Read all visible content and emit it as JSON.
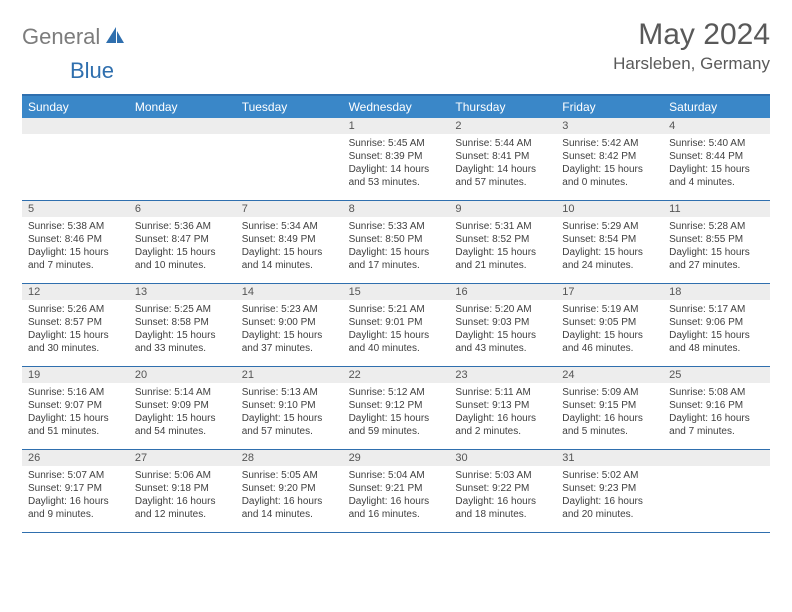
{
  "brand": {
    "part_a": "General",
    "part_b": "Blue"
  },
  "title": "May 2024",
  "location": "Harsleben, Germany",
  "colors": {
    "accent": "#2f6fae",
    "header_bg": "#3a87c8",
    "header_fg": "#ffffff",
    "daynum_bg": "#ededed",
    "text_muted": "#595959",
    "text_body": "#404040"
  },
  "layout": {
    "cols": 7,
    "rows": 5
  },
  "weekdays": [
    "Sunday",
    "Monday",
    "Tuesday",
    "Wednesday",
    "Thursday",
    "Friday",
    "Saturday"
  ],
  "weeks": [
    [
      {
        "n": "",
        "sr": "",
        "ss": "",
        "dl": ""
      },
      {
        "n": "",
        "sr": "",
        "ss": "",
        "dl": ""
      },
      {
        "n": "",
        "sr": "",
        "ss": "",
        "dl": ""
      },
      {
        "n": "1",
        "sr": "Sunrise: 5:45 AM",
        "ss": "Sunset: 8:39 PM",
        "dl": "Daylight: 14 hours and 53 minutes."
      },
      {
        "n": "2",
        "sr": "Sunrise: 5:44 AM",
        "ss": "Sunset: 8:41 PM",
        "dl": "Daylight: 14 hours and 57 minutes."
      },
      {
        "n": "3",
        "sr": "Sunrise: 5:42 AM",
        "ss": "Sunset: 8:42 PM",
        "dl": "Daylight: 15 hours and 0 minutes."
      },
      {
        "n": "4",
        "sr": "Sunrise: 5:40 AM",
        "ss": "Sunset: 8:44 PM",
        "dl": "Daylight: 15 hours and 4 minutes."
      }
    ],
    [
      {
        "n": "5",
        "sr": "Sunrise: 5:38 AM",
        "ss": "Sunset: 8:46 PM",
        "dl": "Daylight: 15 hours and 7 minutes."
      },
      {
        "n": "6",
        "sr": "Sunrise: 5:36 AM",
        "ss": "Sunset: 8:47 PM",
        "dl": "Daylight: 15 hours and 10 minutes."
      },
      {
        "n": "7",
        "sr": "Sunrise: 5:34 AM",
        "ss": "Sunset: 8:49 PM",
        "dl": "Daylight: 15 hours and 14 minutes."
      },
      {
        "n": "8",
        "sr": "Sunrise: 5:33 AM",
        "ss": "Sunset: 8:50 PM",
        "dl": "Daylight: 15 hours and 17 minutes."
      },
      {
        "n": "9",
        "sr": "Sunrise: 5:31 AM",
        "ss": "Sunset: 8:52 PM",
        "dl": "Daylight: 15 hours and 21 minutes."
      },
      {
        "n": "10",
        "sr": "Sunrise: 5:29 AM",
        "ss": "Sunset: 8:54 PM",
        "dl": "Daylight: 15 hours and 24 minutes."
      },
      {
        "n": "11",
        "sr": "Sunrise: 5:28 AM",
        "ss": "Sunset: 8:55 PM",
        "dl": "Daylight: 15 hours and 27 minutes."
      }
    ],
    [
      {
        "n": "12",
        "sr": "Sunrise: 5:26 AM",
        "ss": "Sunset: 8:57 PM",
        "dl": "Daylight: 15 hours and 30 minutes."
      },
      {
        "n": "13",
        "sr": "Sunrise: 5:25 AM",
        "ss": "Sunset: 8:58 PM",
        "dl": "Daylight: 15 hours and 33 minutes."
      },
      {
        "n": "14",
        "sr": "Sunrise: 5:23 AM",
        "ss": "Sunset: 9:00 PM",
        "dl": "Daylight: 15 hours and 37 minutes."
      },
      {
        "n": "15",
        "sr": "Sunrise: 5:21 AM",
        "ss": "Sunset: 9:01 PM",
        "dl": "Daylight: 15 hours and 40 minutes."
      },
      {
        "n": "16",
        "sr": "Sunrise: 5:20 AM",
        "ss": "Sunset: 9:03 PM",
        "dl": "Daylight: 15 hours and 43 minutes."
      },
      {
        "n": "17",
        "sr": "Sunrise: 5:19 AM",
        "ss": "Sunset: 9:05 PM",
        "dl": "Daylight: 15 hours and 46 minutes."
      },
      {
        "n": "18",
        "sr": "Sunrise: 5:17 AM",
        "ss": "Sunset: 9:06 PM",
        "dl": "Daylight: 15 hours and 48 minutes."
      }
    ],
    [
      {
        "n": "19",
        "sr": "Sunrise: 5:16 AM",
        "ss": "Sunset: 9:07 PM",
        "dl": "Daylight: 15 hours and 51 minutes."
      },
      {
        "n": "20",
        "sr": "Sunrise: 5:14 AM",
        "ss": "Sunset: 9:09 PM",
        "dl": "Daylight: 15 hours and 54 minutes."
      },
      {
        "n": "21",
        "sr": "Sunrise: 5:13 AM",
        "ss": "Sunset: 9:10 PM",
        "dl": "Daylight: 15 hours and 57 minutes."
      },
      {
        "n": "22",
        "sr": "Sunrise: 5:12 AM",
        "ss": "Sunset: 9:12 PM",
        "dl": "Daylight: 15 hours and 59 minutes."
      },
      {
        "n": "23",
        "sr": "Sunrise: 5:11 AM",
        "ss": "Sunset: 9:13 PM",
        "dl": "Daylight: 16 hours and 2 minutes."
      },
      {
        "n": "24",
        "sr": "Sunrise: 5:09 AM",
        "ss": "Sunset: 9:15 PM",
        "dl": "Daylight: 16 hours and 5 minutes."
      },
      {
        "n": "25",
        "sr": "Sunrise: 5:08 AM",
        "ss": "Sunset: 9:16 PM",
        "dl": "Daylight: 16 hours and 7 minutes."
      }
    ],
    [
      {
        "n": "26",
        "sr": "Sunrise: 5:07 AM",
        "ss": "Sunset: 9:17 PM",
        "dl": "Daylight: 16 hours and 9 minutes."
      },
      {
        "n": "27",
        "sr": "Sunrise: 5:06 AM",
        "ss": "Sunset: 9:18 PM",
        "dl": "Daylight: 16 hours and 12 minutes."
      },
      {
        "n": "28",
        "sr": "Sunrise: 5:05 AM",
        "ss": "Sunset: 9:20 PM",
        "dl": "Daylight: 16 hours and 14 minutes."
      },
      {
        "n": "29",
        "sr": "Sunrise: 5:04 AM",
        "ss": "Sunset: 9:21 PM",
        "dl": "Daylight: 16 hours and 16 minutes."
      },
      {
        "n": "30",
        "sr": "Sunrise: 5:03 AM",
        "ss": "Sunset: 9:22 PM",
        "dl": "Daylight: 16 hours and 18 minutes."
      },
      {
        "n": "31",
        "sr": "Sunrise: 5:02 AM",
        "ss": "Sunset: 9:23 PM",
        "dl": "Daylight: 16 hours and 20 minutes."
      },
      {
        "n": "",
        "sr": "",
        "ss": "",
        "dl": ""
      }
    ]
  ]
}
